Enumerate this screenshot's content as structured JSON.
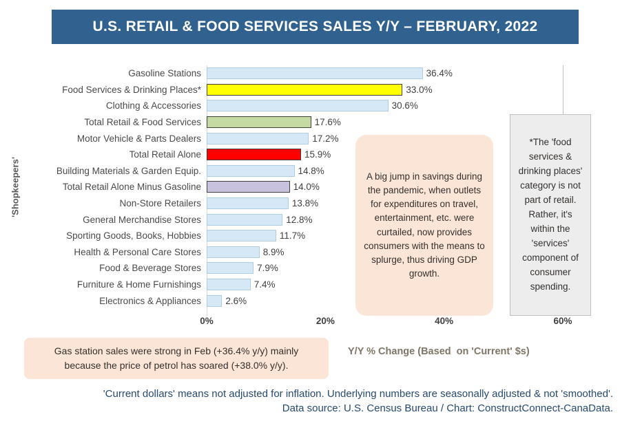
{
  "header": {
    "title": "U.S. RETAIL & FOOD SERVICES SALES Y/Y – FEBRUARY, 2022"
  },
  "colors": {
    "banner_bg": "#30618F",
    "banner_text": "#FFFFFF",
    "bar_default": "#D6E8F5",
    "bar_default_border": "#AFCDE0",
    "highlight_yellow": "#FFFF00",
    "highlight_green": "#C5D9A2",
    "highlight_red": "#FF0000",
    "highlight_purple": "#C8C2DE",
    "note_peach": "#FBE5D6",
    "note_gray": "#EDEDED",
    "footer_text": "#26496F"
  },
  "chart_data": {
    "type": "bar",
    "orientation": "horizontal",
    "title": "U.S. RETAIL & FOOD SERVICES SALES Y/Y – FEBRUARY, 2022",
    "categories": [
      "Gasoline Stations",
      "Food Services & Drinking Places*",
      "Clothing & Accessories",
      "Total Retail & Food Services",
      "Motor Vehicle & Parts Dealers",
      "Total Retail Alone",
      "Building Materials & Garden Equip.",
      "Total Retail Alone Minus Gasoline",
      "Non-Store Retailers",
      "General Merchandise Stores",
      "Sporting Goods, Books, Hobbies",
      "Health & Personal Care Stores",
      "Food & Beverage Stores",
      "Furniture & Home Furnishings",
      "Electronics & Appliances"
    ],
    "values": [
      36.4,
      33.0,
      30.6,
      17.6,
      17.2,
      15.9,
      14.8,
      14.0,
      13.8,
      12.8,
      11.7,
      8.9,
      7.9,
      7.4,
      2.6
    ],
    "value_labels": [
      "36.4%",
      "33.0%",
      "30.6%",
      "17.6%",
      "17.2%",
      "15.9%",
      "14.8%",
      "14.0%",
      "13.8%",
      "12.8%",
      "11.7%",
      "8.9%",
      "7.9%",
      "7.4%",
      "2.6%"
    ],
    "bar_colors": [
      "#D6E8F5",
      "#FFFF00",
      "#D6E8F5",
      "#C5D9A2",
      "#D6E8F5",
      "#FF0000",
      "#D6E8F5",
      "#C8C2DE",
      "#D6E8F5",
      "#D6E8F5",
      "#D6E8F5",
      "#D6E8F5",
      "#D6E8F5",
      "#D6E8F5",
      "#D6E8F5"
    ],
    "bar_border_colors": [
      "#AFCDE0",
      "#404040",
      "#AFCDE0",
      "#404040",
      "#AFCDE0",
      "#404040",
      "#AFCDE0",
      "#404040",
      "#AFCDE0",
      "#AFCDE0",
      "#AFCDE0",
      "#AFCDE0",
      "#AFCDE0",
      "#AFCDE0",
      "#AFCDE0"
    ],
    "ylabel": "'Shopkeepers'",
    "xlabel": "Y/Y % Change (Based  on 'Current' $s)",
    "x_tick_labels": [
      "0%",
      "20%",
      "40%",
      "60%"
    ],
    "x_tick_values": [
      0,
      20,
      40,
      60
    ],
    "xlim": [
      0,
      60
    ],
    "legend": "none",
    "grid": "off"
  },
  "annotations": {
    "pandemic_note": "A big jump in savings during the pandemic, when outlets for expenditures on travel, entertainment, etc. were curtailed, now provides consumers with the means to splurge, thus driving GDP growth.",
    "food_services_note": "*The 'food services & drinking places' category is not part of retail. Rather, it's within the 'services' component of consumer spending.",
    "gas_note_line1": "Gas station sales were strong in Feb (+36.4% y/y) mainly",
    "gas_note_line2": "because the price of petrol has soared (+38.0% y/y)."
  },
  "footer": {
    "line1": "'Current dollars' means not adjusted for inflation. Underlying numbers are seasonally adjusted & not 'smoothed'.",
    "line2": "Data source: U.S. Census Bureau / Chart: ConstructConnect-CanaData."
  }
}
